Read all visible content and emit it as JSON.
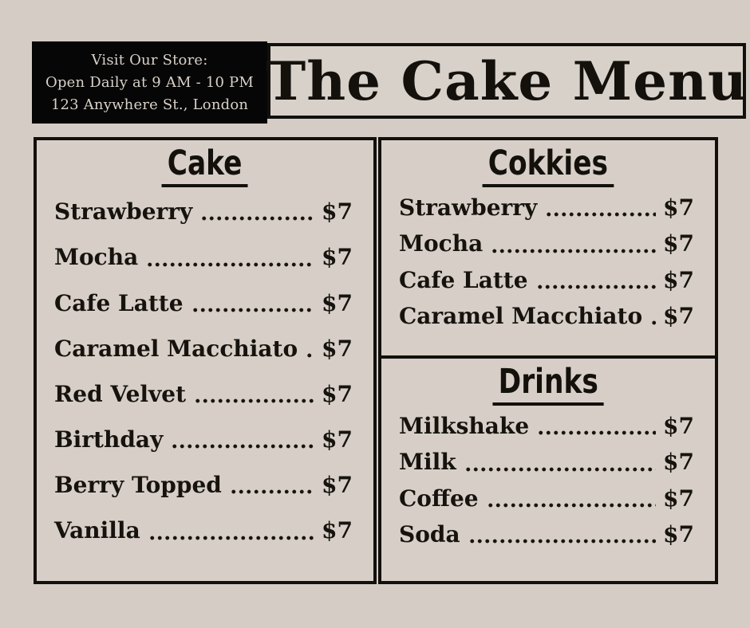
{
  "page": {
    "background_color": "#d5cdc5",
    "ink_color": "#12100c",
    "info_box_bg": "#060606",
    "info_box_text_color": "#d8d1c9"
  },
  "header": {
    "info": {
      "line1": "Visit Our Store:",
      "line2": "Open Daily at 9 AM - 10 PM",
      "line3": "123 Anywhere St., London"
    },
    "title": "The Cake Menu"
  },
  "menu": {
    "sections": [
      {
        "title": "Cake",
        "items": [
          {
            "name": "Strawberry",
            "price": "$7"
          },
          {
            "name": "Mocha",
            "price": "$7"
          },
          {
            "name": "Cafe Latte",
            "price": "$7"
          },
          {
            "name": "Caramel Macchiato",
            "price": "$7"
          },
          {
            "name": "Red Velvet",
            "price": "$7"
          },
          {
            "name": "Birthday",
            "price": "$7"
          },
          {
            "name": "Berry Topped",
            "price": "$7"
          },
          {
            "name": "Vanilla",
            "price": "$7"
          }
        ]
      },
      {
        "title": "Cokkies",
        "items": [
          {
            "name": "Strawberry",
            "price": "$7"
          },
          {
            "name": "Mocha",
            "price": "$7"
          },
          {
            "name": "Cafe Latte",
            "price": "$7"
          },
          {
            "name": "Caramel Macchiato",
            "price": "$7"
          }
        ]
      },
      {
        "title": "Drinks",
        "items": [
          {
            "name": "Milkshake",
            "price": "$7"
          },
          {
            "name": "Milk",
            "price": "$7"
          },
          {
            "name": "Coffee",
            "price": "$7"
          },
          {
            "name": "Soda",
            "price": "$7"
          }
        ]
      }
    ]
  }
}
